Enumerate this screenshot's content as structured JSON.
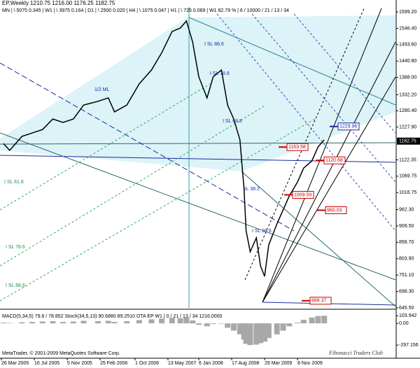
{
  "chart_data": {
    "type": "line",
    "title": "EP,Weekly  1210.75 1216.00 1176.25 1182.75",
    "subtitle": "MN | \\ 5075   0.345 | W1 | \\ 3975   0.164 | D1 | \\ 2500   0.020 | H4 | \\ 1075   0.047 | H1 | \\ 725   0.069 | W1  82.79 % | 6 / 10000 / 21 / 13 / 34",
    "x": [
      1,
      4,
      10,
      15,
      20,
      25,
      30,
      35,
      40,
      47,
      52,
      55,
      61,
      67,
      73,
      78,
      83,
      87,
      90,
      93,
      96,
      100,
      103,
      107,
      110,
      113,
      116,
      118,
      119,
      121,
      124,
      126,
      128,
      130,
      134,
      137,
      140,
      144,
      147,
      151,
      154,
      157
    ],
    "series": [
      {
        "color": "#000000",
        "values": [
          1175,
          1153,
          1198,
          1209,
          1220,
          1254,
          1243,
          1254,
          1299,
          1311,
          1322,
          1277,
          1299,
          1367,
          1412,
          1468,
          1536,
          1547,
          1570,
          1502,
          1390,
          1322,
          1390,
          1412,
          1299,
          1254,
          1187,
          1029,
          894,
          826,
          871,
          781,
          747,
          848,
          916,
          961,
          1006,
          1051,
          1096,
          1119,
          1164,
          1187
        ]
      }
    ],
    "xlim": [
      0,
      192
    ],
    "xticks": [
      {
        "value": 0,
        "label": "26 Mar 2005"
      },
      {
        "value": 16,
        "label": "16 Jul 2005"
      },
      {
        "value": 32,
        "label": "5 Nov 2005"
      },
      {
        "value": 48,
        "label": "25 Feb 2006"
      },
      {
        "value": 65,
        "label": "1 Oct 2006"
      },
      {
        "value": 81,
        "label": "13 May 2007"
      },
      {
        "value": 96,
        "label": "6 Jan 2008"
      },
      {
        "value": 112,
        "label": "17 Aug 2008"
      },
      {
        "value": 128,
        "label": "29 Mar 2009"
      },
      {
        "value": 144,
        "label": "8 Nov 2009"
      }
    ],
    "ylim": [
      645.5,
      1619.5
    ],
    "yticks": [
      {
        "value": 1599.2,
        "label": "1599.20"
      },
      {
        "value": 1546.4,
        "label": "1546.40"
      },
      {
        "value": 1493.6,
        "label": "1493.60"
      },
      {
        "value": 1440.8,
        "label": "1440.80"
      },
      {
        "value": 1388,
        "label": "1388.00"
      },
      {
        "value": 1332.2,
        "label": "1332.20"
      },
      {
        "value": 1280.4,
        "label": "1280.40"
      },
      {
        "value": 1227.9,
        "label": "1227.90"
      },
      {
        "value": 1122.35,
        "label": "1122.35"
      },
      {
        "value": 1069.75,
        "label": "1069.75"
      },
      {
        "value": 1016.75,
        "label": "1016.75"
      },
      {
        "value": 962.3,
        "label": "962.30"
      },
      {
        "value": 909.5,
        "label": "909.50"
      },
      {
        "value": 856.7,
        "label": "856.70"
      },
      {
        "value": 803.9,
        "label": "803.90"
      },
      {
        "value": 751.1,
        "label": "751.10"
      },
      {
        "value": 698.3,
        "label": "698.30"
      },
      {
        "value": 645.5,
        "label": "645.50"
      }
    ],
    "last_price": 1182.75,
    "price_labels": [
      1229.96,
      1163.58,
      1120.68,
      1009.59,
      960.03,
      668.37
    ],
    "price_label_colors": [
      "#1a2aa0",
      "#cc0000",
      "#cc0000",
      "#cc0000",
      "#cc0000",
      "#cc0000"
    ],
    "annotations": [
      "1/2 ML",
      "I SL 88.6",
      "I SL 78.6",
      "I SL 68.8",
      "SL 38.2",
      "I SL 28.6",
      "I SL 61.8",
      "I SL 78.6",
      "I SL 88.6"
    ],
    "indicator": {
      "title": "MACD(5,34,5) 79.8 / 78.852   Stoch(34,5,13) 90.6880 89.2510   OTA EP W1 | 0 / 21 / 13 / 34 1216.0000",
      "color": "#a8a8a8",
      "values": [
        10,
        5,
        15,
        20,
        25,
        30,
        20,
        25,
        35,
        30,
        35,
        20,
        30,
        45,
        55,
        65,
        75,
        70,
        80,
        40,
        -20,
        -40,
        -10,
        -5,
        -60,
        -100,
        -150,
        -220,
        -280,
        -297,
        -290,
        -270,
        -250,
        -200,
        -150,
        -100,
        -40,
        10,
        50,
        80,
        100,
        104
      ],
      "ylim": [
        -457,
        174
      ],
      "yticks": [
        {
          "value": 103.942,
          "label": "103.942"
        },
        {
          "value": 0,
          "label": "0.00"
        },
        {
          "value": -297.156,
          "label": "-297.156"
        }
      ]
    },
    "footer": "MetaTrader, © 2001-2009 MetaQuotes Software Corp.",
    "credit": "Fibonacci Traders Club"
  }
}
